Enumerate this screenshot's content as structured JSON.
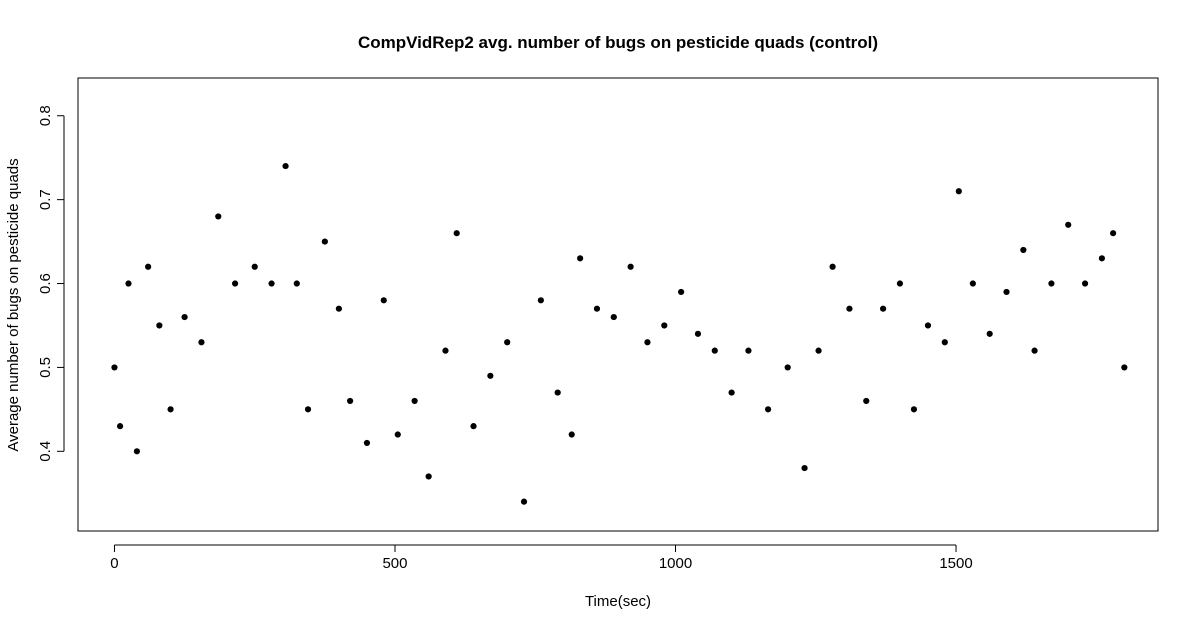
{
  "chart_data": {
    "type": "scatter",
    "title": "CompVidRep2 avg. number of bugs on pesticide quads (control)",
    "xlabel": "Time(sec)",
    "ylabel": "Average number of bugs on pesticide quads",
    "xlim": [
      -65,
      1860
    ],
    "ylim": [
      0.305,
      0.845
    ],
    "x_ticks": [
      0,
      500,
      1000,
      1500
    ],
    "y_ticks": [
      0.4,
      0.5,
      0.6,
      0.7,
      0.8
    ],
    "grid": false,
    "legend": "none",
    "point_color": "#000000",
    "frame_color": "#000000",
    "anchor_points": [
      {
        "x": 0,
        "y": 0.5
      },
      {
        "x": 10,
        "y": 0.43
      },
      {
        "x": 25,
        "y": 0.6
      },
      {
        "x": 40,
        "y": 0.4
      },
      {
        "x": 60,
        "y": 0.62
      },
      {
        "x": 80,
        "y": 0.55
      },
      {
        "x": 100,
        "y": 0.45
      },
      {
        "x": 125,
        "y": 0.56
      },
      {
        "x": 155,
        "y": 0.53
      },
      {
        "x": 185,
        "y": 0.68
      },
      {
        "x": 215,
        "y": 0.6
      },
      {
        "x": 250,
        "y": 0.62
      },
      {
        "x": 280,
        "y": 0.6
      },
      {
        "x": 305,
        "y": 0.74
      },
      {
        "x": 325,
        "y": 0.6
      },
      {
        "x": 345,
        "y": 0.45
      },
      {
        "x": 375,
        "y": 0.65
      },
      {
        "x": 400,
        "y": 0.57
      },
      {
        "x": 420,
        "y": 0.46
      },
      {
        "x": 450,
        "y": 0.41
      },
      {
        "x": 480,
        "y": 0.58
      },
      {
        "x": 505,
        "y": 0.42
      },
      {
        "x": 535,
        "y": 0.46
      },
      {
        "x": 560,
        "y": 0.37
      },
      {
        "x": 590,
        "y": 0.52
      },
      {
        "x": 610,
        "y": 0.66
      },
      {
        "x": 640,
        "y": 0.43
      },
      {
        "x": 670,
        "y": 0.49
      },
      {
        "x": 700,
        "y": 0.53
      },
      {
        "x": 730,
        "y": 0.34
      },
      {
        "x": 760,
        "y": 0.58
      },
      {
        "x": 790,
        "y": 0.47
      },
      {
        "x": 815,
        "y": 0.42
      },
      {
        "x": 830,
        "y": 0.63
      },
      {
        "x": 860,
        "y": 0.57
      },
      {
        "x": 890,
        "y": 0.56
      },
      {
        "x": 920,
        "y": 0.62
      },
      {
        "x": 950,
        "y": 0.53
      },
      {
        "x": 980,
        "y": 0.55
      },
      {
        "x": 1010,
        "y": 0.59
      },
      {
        "x": 1040,
        "y": 0.54
      },
      {
        "x": 1070,
        "y": 0.52
      },
      {
        "x": 1100,
        "y": 0.47
      },
      {
        "x": 1130,
        "y": 0.52
      },
      {
        "x": 1165,
        "y": 0.45
      },
      {
        "x": 1200,
        "y": 0.5
      },
      {
        "x": 1230,
        "y": 0.38
      },
      {
        "x": 1255,
        "y": 0.52
      },
      {
        "x": 1280,
        "y": 0.62
      },
      {
        "x": 1310,
        "y": 0.57
      },
      {
        "x": 1340,
        "y": 0.46
      },
      {
        "x": 1370,
        "y": 0.57
      },
      {
        "x": 1400,
        "y": 0.6
      },
      {
        "x": 1425,
        "y": 0.45
      },
      {
        "x": 1450,
        "y": 0.55
      },
      {
        "x": 1480,
        "y": 0.53
      },
      {
        "x": 1505,
        "y": 0.71
      },
      {
        "x": 1530,
        "y": 0.6
      },
      {
        "x": 1560,
        "y": 0.54
      },
      {
        "x": 1590,
        "y": 0.59
      },
      {
        "x": 1620,
        "y": 0.64
      },
      {
        "x": 1640,
        "y": 0.52
      },
      {
        "x": 1670,
        "y": 0.6
      },
      {
        "x": 1700,
        "y": 0.67
      },
      {
        "x": 1730,
        "y": 0.6
      },
      {
        "x": 1760,
        "y": 0.63
      },
      {
        "x": 1780,
        "y": 0.66
      },
      {
        "x": 1800,
        "y": 0.5
      }
    ]
  }
}
